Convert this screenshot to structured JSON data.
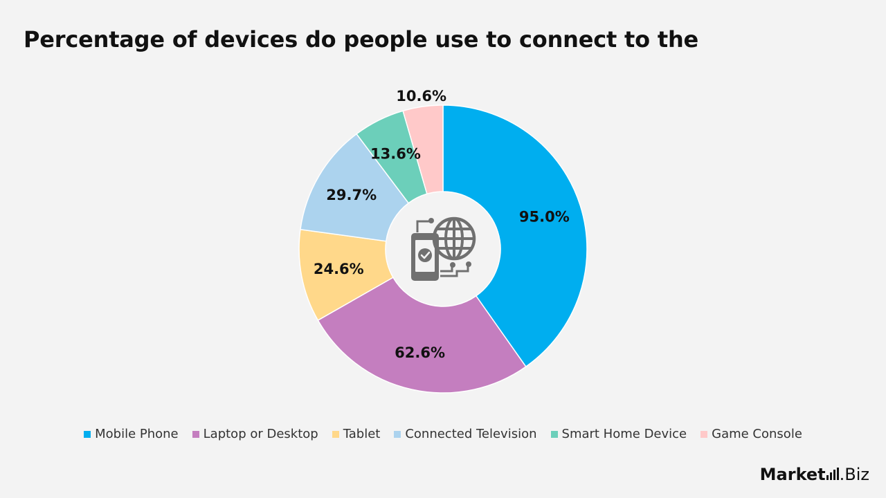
{
  "chart_data": {
    "type": "pie",
    "title": "Percentage of devices do people use to connect to the",
    "donut": true,
    "legend_position": "bottom",
    "slices": [
      {
        "name": "Mobile Phone",
        "value": 95.0,
        "label": "95.0%",
        "color": "#00aeef"
      },
      {
        "name": "Laptop or Desktop",
        "value": 62.6,
        "label": "62.6%",
        "color": "#c47ebf"
      },
      {
        "name": "Tablet",
        "value": 24.6,
        "label": "24.6%",
        "color": "#ffd88a"
      },
      {
        "name": "Connected Television",
        "value": 29.7,
        "label": "29.7%",
        "color": "#acd3ee"
      },
      {
        "name": "Smart Home Device",
        "value": 13.6,
        "label": "13.6%",
        "color": "#6ccfba"
      },
      {
        "name": "Game Console",
        "value": 10.6,
        "label": "10.6%",
        "color": "#ffc9c9"
      }
    ]
  },
  "center_icon": "phone-globe-connection-icon",
  "brand": {
    "main": "Market",
    "suffix": ".Biz"
  }
}
